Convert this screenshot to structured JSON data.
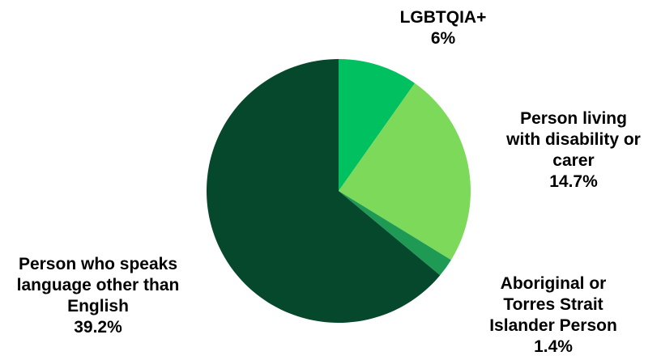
{
  "chart_data": {
    "type": "pie",
    "title": "",
    "start_angle_deg": 0,
    "direction": "clockwise",
    "slices": [
      {
        "label_lines": [
          "LGBTQIA+"
        ],
        "value_label": "6%",
        "value": 6,
        "color": "#00c060"
      },
      {
        "label_lines": [
          "Person living",
          "with disability or",
          "carer"
        ],
        "value_label": "14.7%",
        "value": 14.7,
        "color": "#7dd95a"
      },
      {
        "label_lines": [
          "Aboriginal or",
          "Torres Strait",
          "Islander Person"
        ],
        "value_label": "1.4%",
        "value": 1.4,
        "color": "#1f9a55"
      },
      {
        "label_lines": [
          "Person who speaks",
          "language other than",
          "English"
        ],
        "value_label": "39.2%",
        "value": 39.2,
        "color": "#05482b"
      }
    ]
  }
}
